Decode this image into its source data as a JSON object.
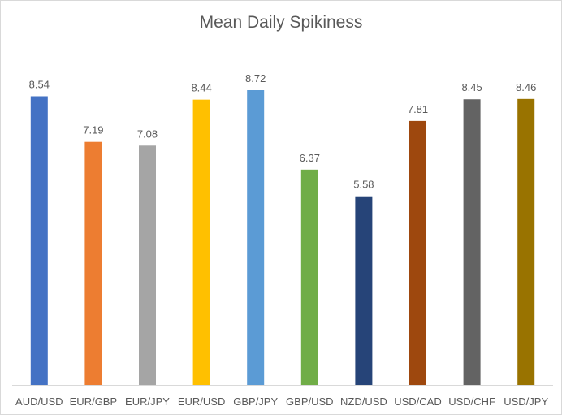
{
  "chart_data": {
    "type": "bar",
    "title": "Mean Daily Spikiness",
    "xlabel": "",
    "ylabel": "",
    "ylim": [
      0,
      8.72
    ],
    "grid": false,
    "legend": "none",
    "categories": [
      "AUD/USD",
      "EUR/GBP",
      "EUR/JPY",
      "EUR/USD",
      "GBP/JPY",
      "GBP/USD",
      "NZD/USD",
      "USD/CAD",
      "USD/CHF",
      "USD/JPY"
    ],
    "values": [
      8.54,
      7.19,
      7.08,
      8.44,
      8.72,
      6.37,
      5.58,
      7.81,
      8.45,
      8.46
    ],
    "value_labels": [
      "8.54",
      "7.19",
      "7.08",
      "8.44",
      "8.72",
      "6.37",
      "5.58",
      "7.81",
      "8.45",
      "8.46"
    ],
    "colors": [
      "#4472c4",
      "#ed7d31",
      "#a5a5a5",
      "#ffc000",
      "#5b9bd5",
      "#70ad47",
      "#264478",
      "#9e480e",
      "#636363",
      "#997300"
    ]
  }
}
